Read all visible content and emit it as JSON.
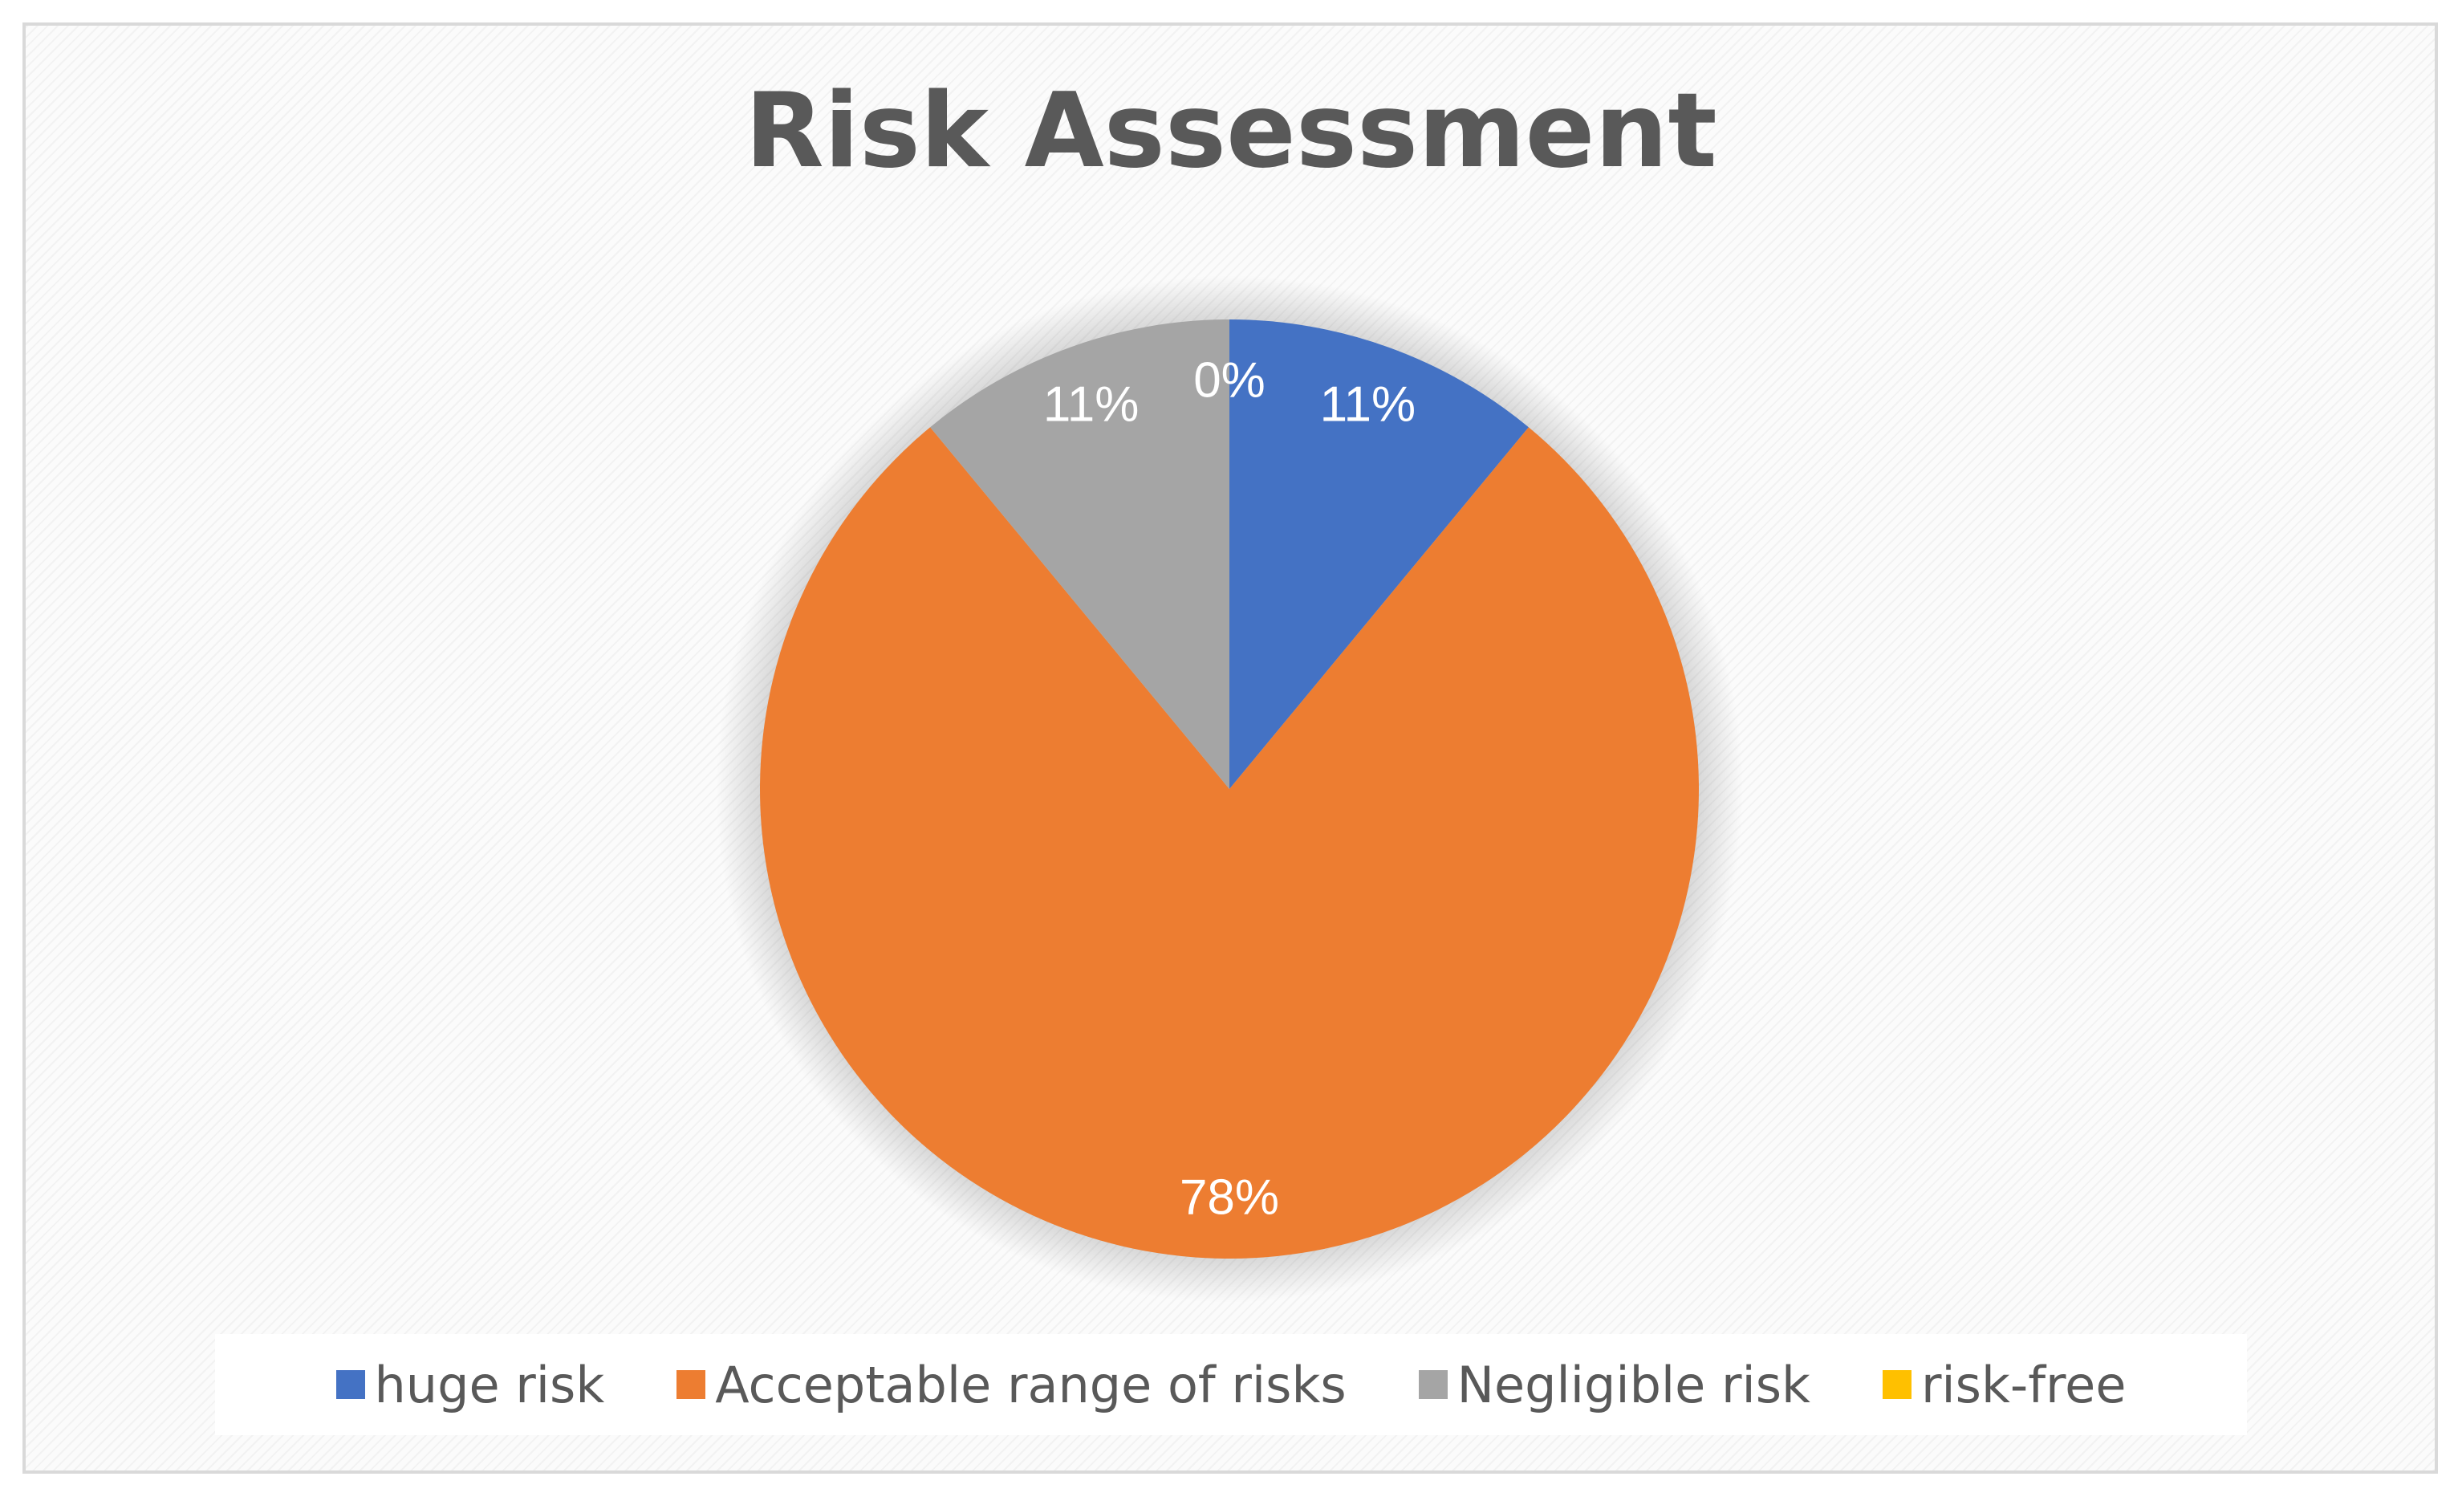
{
  "chart_data": {
    "type": "pie",
    "title": "Risk Assessment",
    "categories": [
      "huge risk",
      "Acceptable range of risks",
      "Negligible risk",
      "risk-free"
    ],
    "values": [
      11,
      78,
      11,
      0
    ],
    "labels": [
      "11%",
      "78%",
      "11%",
      "0%"
    ],
    "colors": [
      "#4472C4",
      "#ED7D31",
      "#A5A5A5",
      "#FFC000"
    ],
    "legend_position": "bottom"
  }
}
